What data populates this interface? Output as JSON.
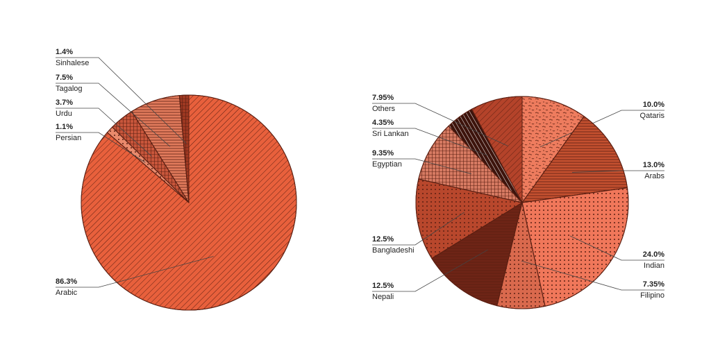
{
  "chart_data": [
    {
      "type": "pie",
      "categories": [
        "Arabic",
        "Persian",
        "Urdu",
        "Tagalog",
        "Sinhalese"
      ],
      "values": [
        86.3,
        1.1,
        3.7,
        7.5,
        1.4
      ],
      "value_labels": [
        "86.3%",
        "1.1%",
        "3.7%",
        "7.5%",
        "1.4%"
      ],
      "colors": [
        "#e8603c",
        "#e98a6c",
        "#c8563b",
        "#e27b5c",
        "#9e3822"
      ]
    },
    {
      "type": "pie",
      "categories": [
        "Qataris",
        "Arabs",
        "Indian",
        "Filipino",
        "Nepali",
        "Bangladeshi",
        "Egyptian",
        "Sri Lankan",
        "Others"
      ],
      "values": [
        10.0,
        13.0,
        24.0,
        7.35,
        12.5,
        12.5,
        9.35,
        4.35,
        7.95
      ],
      "value_labels": [
        "10.0%",
        "13.0%",
        "24.0%",
        "7.35%",
        "12.5%",
        "12.5%",
        "9.35%",
        "4.35%",
        "7.95%"
      ],
      "colors": [
        "#ee7c5e",
        "#c4502f",
        "#f0775a",
        "#d9694d",
        "#6e2416",
        "#b8472c",
        "#d67a62",
        "#3d140c",
        "#b4432a"
      ]
    }
  ]
}
